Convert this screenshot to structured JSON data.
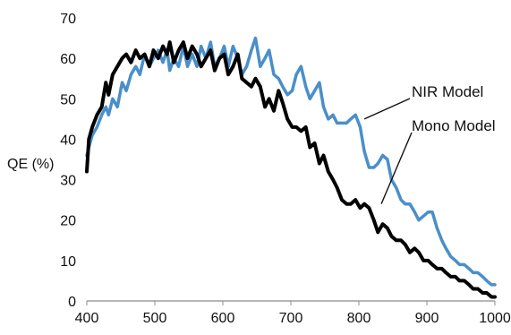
{
  "chart_data": {
    "type": "line",
    "title": "",
    "xlabel": "",
    "ylabel": "QE (%)",
    "xlim": [
      400,
      1000
    ],
    "ylim": [
      0,
      70
    ],
    "xticks": [
      400,
      500,
      600,
      700,
      800,
      900,
      1000
    ],
    "yticks": [
      0,
      10,
      20,
      30,
      40,
      50,
      60,
      70
    ],
    "grid": false,
    "legend": "none",
    "annotations": [
      {
        "text": "NIR Model",
        "series": "NIR Model"
      },
      {
        "text": "Mono Model",
        "series": "Mono Model"
      }
    ],
    "series": [
      {
        "name": "Mono Model",
        "color": "#000000",
        "x": [
          400,
          403,
          408,
          415,
          422,
          428,
          432,
          438,
          445,
          452,
          458,
          465,
          472,
          478,
          485,
          492,
          498,
          505,
          512,
          518,
          522,
          528,
          535,
          542,
          548,
          555,
          562,
          568,
          575,
          582,
          588,
          595,
          602,
          608,
          615,
          622,
          628,
          635,
          642,
          648,
          655,
          662,
          668,
          675,
          682,
          688,
          695,
          702,
          708,
          715,
          722,
          728,
          735,
          742,
          748,
          755,
          762,
          768,
          775,
          782,
          788,
          795,
          802,
          808,
          815,
          822,
          828,
          835,
          842,
          848,
          855,
          862,
          868,
          875,
          882,
          888,
          895,
          902,
          908,
          915,
          922,
          928,
          935,
          942,
          948,
          955,
          962,
          968,
          975,
          982,
          988,
          995,
          1000
        ],
        "values": [
          32,
          40,
          43,
          46,
          48,
          54,
          51,
          56,
          58,
          60,
          61,
          59,
          62,
          60,
          61,
          58,
          62,
          60,
          63,
          61,
          64,
          59,
          62,
          64,
          60,
          63,
          61,
          58,
          60,
          62,
          57,
          60,
          61,
          56,
          58,
          61,
          55,
          54,
          53,
          55,
          53,
          48,
          50,
          47,
          52,
          49,
          45,
          43,
          43,
          42,
          43,
          38,
          39,
          34,
          36,
          32,
          30,
          28,
          25,
          24,
          24,
          25,
          23,
          24,
          23,
          20,
          17,
          19,
          18,
          16,
          15,
          15,
          14,
          12,
          13,
          12,
          10,
          10,
          9,
          8,
          8,
          7,
          6,
          6,
          5,
          5,
          4,
          3,
          3,
          2,
          2,
          1,
          1
        ]
      },
      {
        "name": "NIR Model",
        "color": "#4a8fc9",
        "x": [
          400,
          403,
          408,
          415,
          422,
          428,
          432,
          438,
          445,
          452,
          458,
          465,
          472,
          478,
          485,
          492,
          498,
          505,
          512,
          518,
          522,
          528,
          535,
          542,
          548,
          555,
          562,
          568,
          575,
          582,
          588,
          595,
          602,
          608,
          615,
          622,
          628,
          635,
          642,
          648,
          655,
          662,
          668,
          675,
          682,
          688,
          695,
          702,
          708,
          715,
          722,
          728,
          735,
          742,
          748,
          755,
          762,
          768,
          775,
          782,
          788,
          795,
          802,
          808,
          815,
          822,
          828,
          835,
          842,
          848,
          855,
          862,
          868,
          875,
          882,
          888,
          895,
          902,
          908,
          915,
          922,
          928,
          935,
          942,
          948,
          955,
          962,
          968,
          975,
          982,
          988,
          995,
          1000
        ],
        "values": [
          36,
          38,
          41,
          43,
          46,
          48,
          46,
          50,
          48,
          54,
          52,
          56,
          58,
          56,
          61,
          58,
          60,
          62,
          59,
          62,
          57,
          60,
          58,
          63,
          58,
          61,
          58,
          63,
          60,
          64,
          58,
          60,
          63,
          58,
          63,
          60,
          56,
          58,
          62,
          65,
          58,
          60,
          62,
          56,
          55,
          53,
          51,
          52,
          56,
          58,
          53,
          50,
          52,
          54,
          48,
          45,
          46,
          44,
          44,
          44,
          45,
          46,
          43,
          37,
          33,
          33,
          34,
          36,
          35,
          30,
          28,
          25,
          24,
          24,
          22,
          20,
          21,
          22,
          22,
          18,
          15,
          13,
          11,
          10,
          9,
          9,
          8,
          7,
          7,
          6,
          5,
          4,
          4
        ]
      }
    ]
  }
}
